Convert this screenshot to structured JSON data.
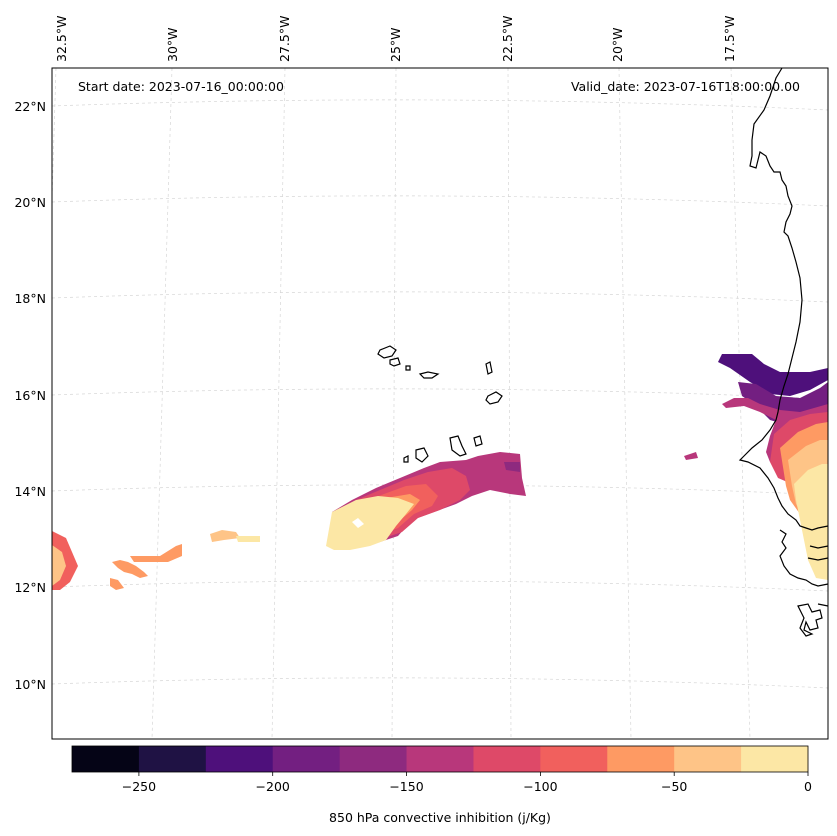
{
  "header": {
    "start_date": "Start date: 2023-07-16_00:00:00",
    "valid_date": "Valid_date: 2023-07-16T18:00:00.00"
  },
  "axes": {
    "lat_labels": [
      "22°N",
      "20°N",
      "18°N",
      "16°N",
      "14°N",
      "12°N",
      "10°N"
    ],
    "lon_labels": [
      "32.5°W",
      "30°W",
      "27.5°W",
      "25°W",
      "22.5°W",
      "20°W",
      "17.5°W"
    ]
  },
  "colorbar": {
    "label": "850 hPa convective inhibition (j/Kg)",
    "ticks": [
      "−250",
      "−200",
      "−150",
      "−100",
      "−50",
      "0"
    ],
    "levels": [
      -275,
      -250,
      -225,
      -200,
      -175,
      -150,
      -125,
      -100,
      -75,
      -50,
      -25,
      0
    ],
    "colors": [
      "#050416",
      "#1f1244",
      "#4e107b",
      "#731f81",
      "#8e2a7f",
      "#b8377b",
      "#de4968",
      "#f1605d",
      "#fe9a63",
      "#fec487",
      "#fce7a5"
    ]
  },
  "colors": {
    "coastline": "#000000",
    "gridline": "#d0d0d0",
    "frame": "#000000"
  }
}
